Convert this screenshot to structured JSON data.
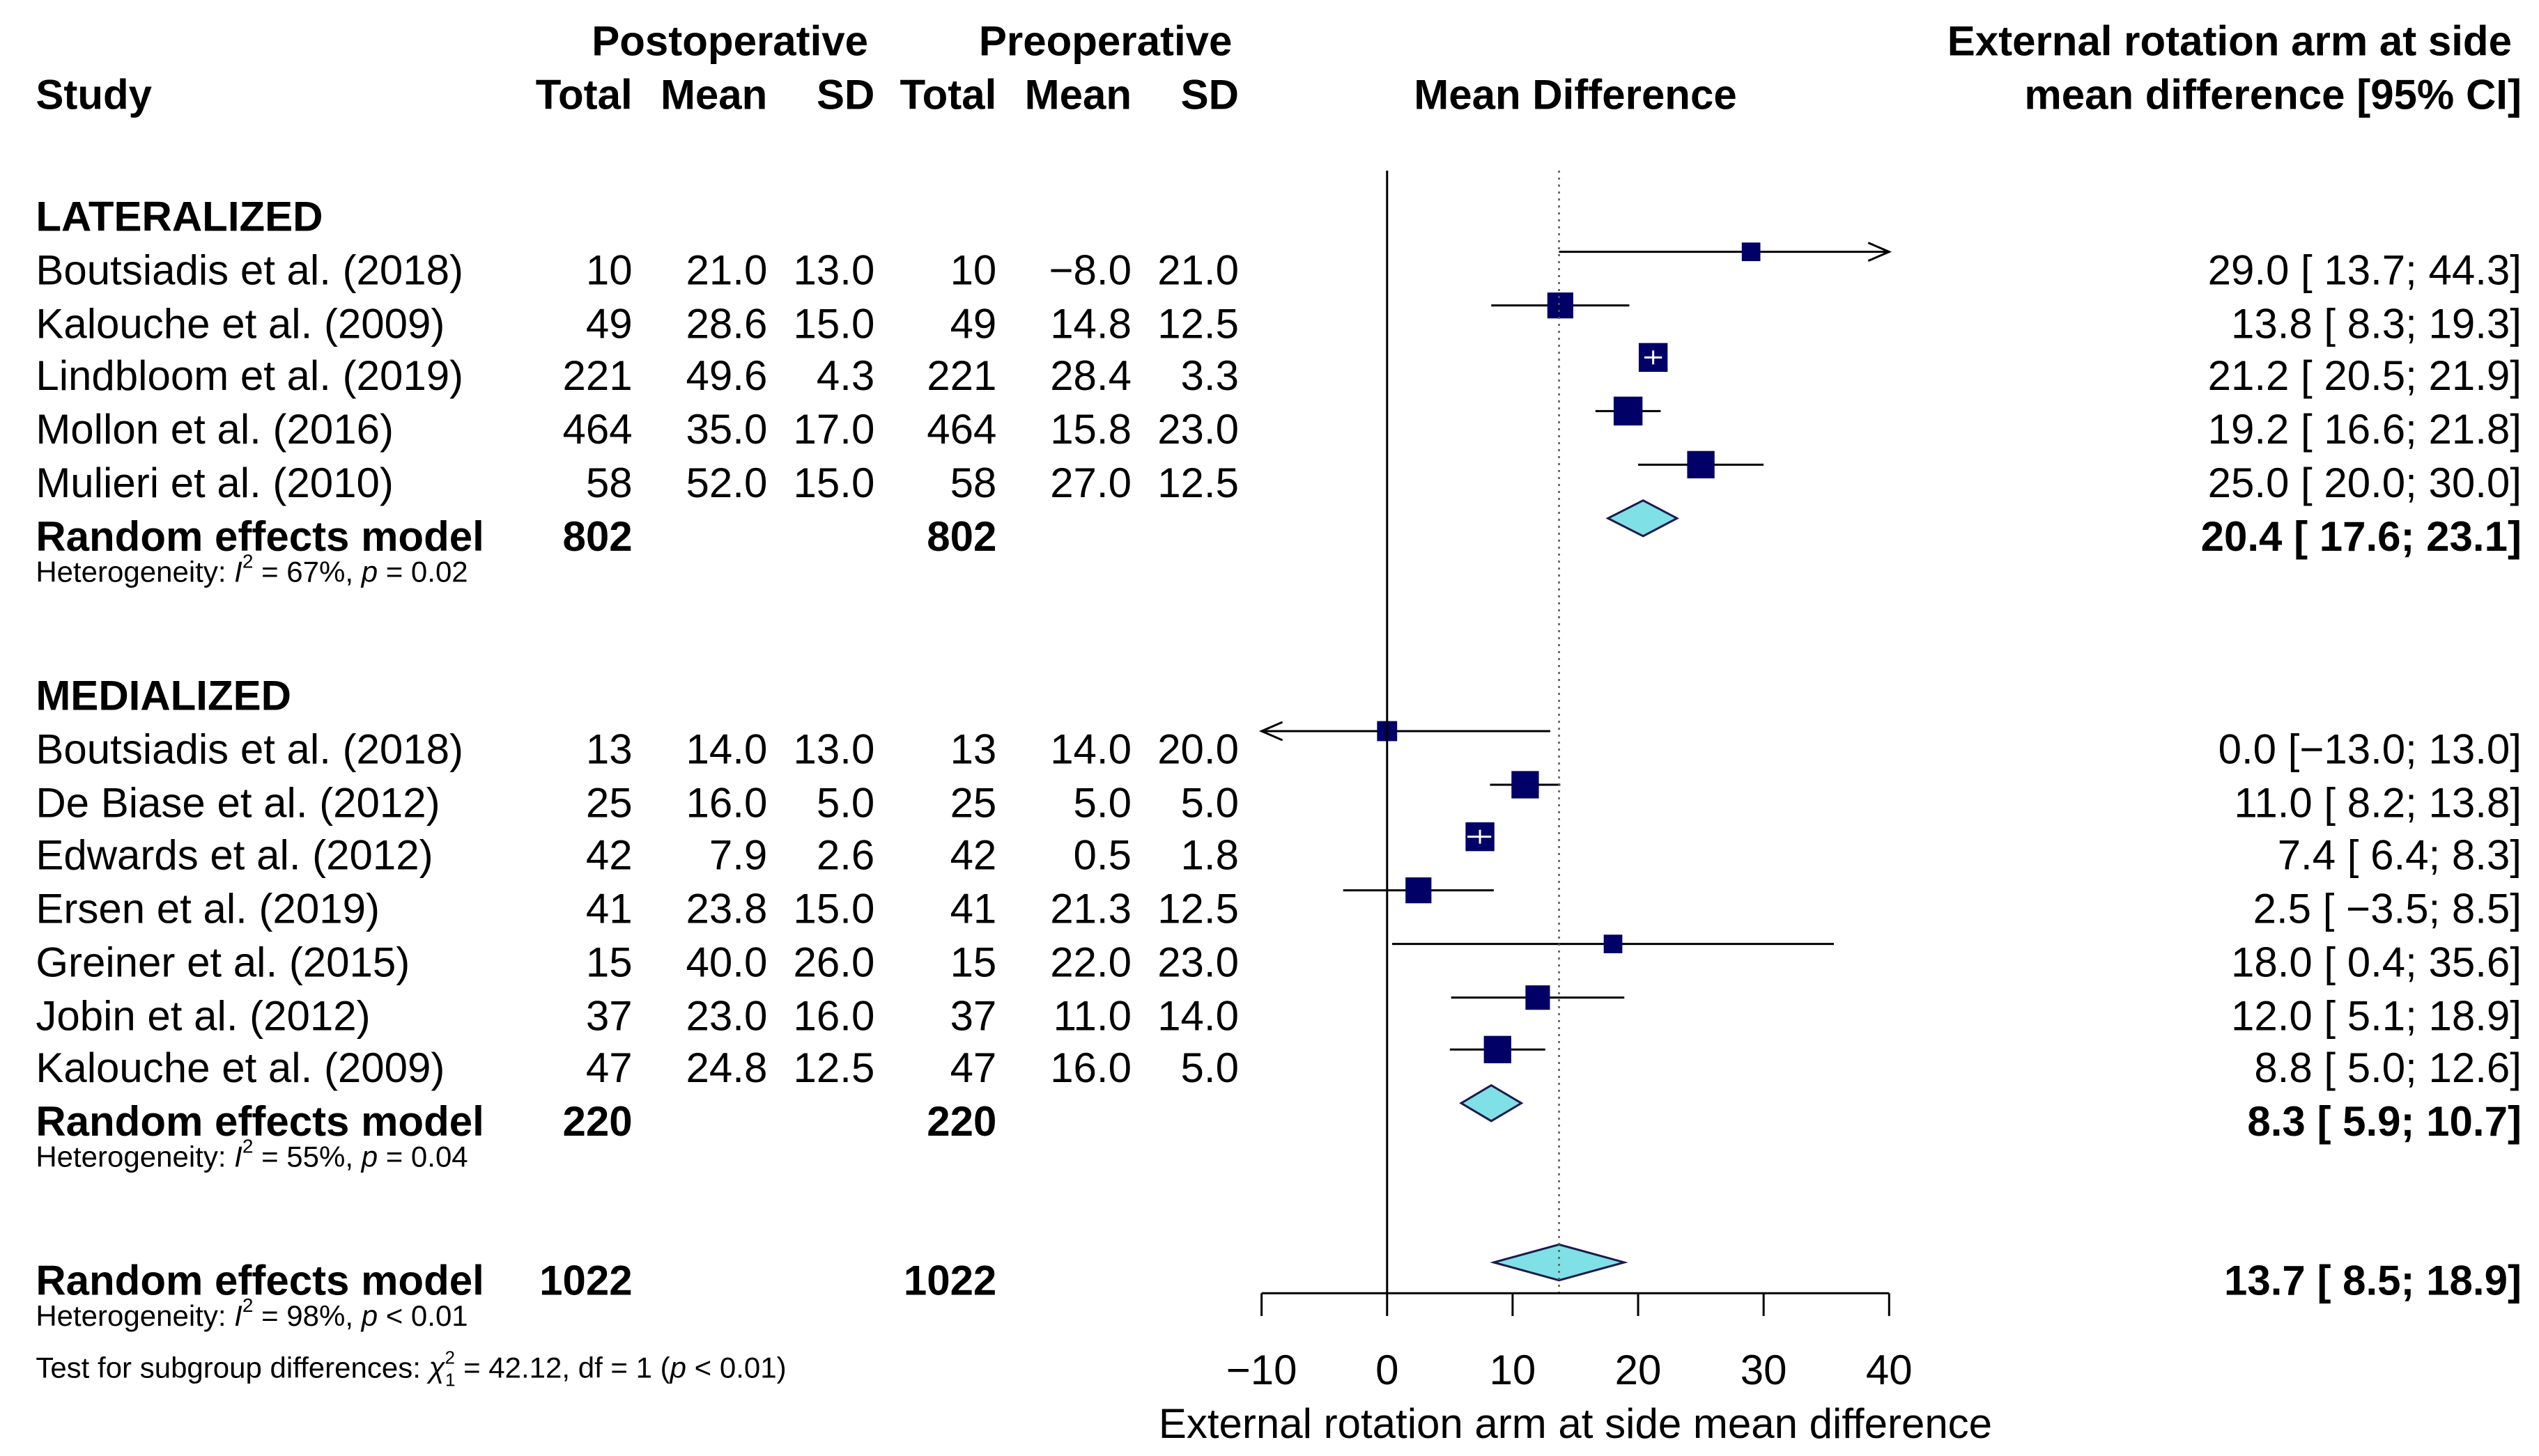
{
  "chart_data": {
    "type": "forest",
    "headers": {
      "study": "Study",
      "postoperative": "Postoperative",
      "preoperative": "Preoperative",
      "total": "Total",
      "mean": "Mean",
      "sd": "SD",
      "mean_difference": "Mean Difference",
      "effect_line1": "External rotation arm at side",
      "effect_line2": "mean difference [95% CI]"
    },
    "groups": [
      {
        "title": "LATERALIZED",
        "studies": [
          {
            "study": "Boutsiadis et al. (2018)",
            "post_total": "10",
            "post_mean": "21.0",
            "post_sd": "13.0",
            "pre_total": "10",
            "pre_mean": "−8.0",
            "pre_sd": "21.0",
            "md": 29.0,
            "lo": 13.7,
            "hi": 44.3,
            "ci_text": "29.0 [ 13.7; 44.3]",
            "weight": 0.35
          },
          {
            "study": "Kalouche et al. (2009)",
            "post_total": "49",
            "post_mean": "28.6",
            "post_sd": "15.0",
            "pre_total": "49",
            "pre_mean": "14.8",
            "pre_sd": "12.5",
            "md": 13.8,
            "lo": 8.3,
            "hi": 19.3,
            "ci_text": "13.8 [  8.3; 19.3]",
            "weight": 0.6
          },
          {
            "study": "Lindbloom et al. (2019)",
            "post_total": "221",
            "post_mean": "49.6",
            "post_sd": "4.3",
            "pre_total": "221",
            "pre_mean": "28.4",
            "pre_sd": "3.3",
            "md": 21.2,
            "lo": 20.5,
            "hi": 21.9,
            "ci_text": "21.2 [ 20.5; 21.9]",
            "weight": 0.7
          },
          {
            "study": "Mollon et al. (2016)",
            "post_total": "464",
            "post_mean": "35.0",
            "post_sd": "17.0",
            "pre_total": "464",
            "pre_mean": "15.8",
            "pre_sd": "23.0",
            "md": 19.2,
            "lo": 16.6,
            "hi": 21.8,
            "ci_text": "19.2 [ 16.6; 21.8]",
            "weight": 0.7
          },
          {
            "study": "Mulieri et al. (2010)",
            "post_total": "58",
            "post_mean": "52.0",
            "post_sd": "15.0",
            "pre_total": "58",
            "pre_mean": "27.0",
            "pre_sd": "12.5",
            "md": 25.0,
            "lo": 20.0,
            "hi": 30.0,
            "ci_text": "25.0 [ 20.0; 30.0]",
            "weight": 0.65
          }
        ],
        "model": {
          "label": "Random effects model",
          "post_total": "802",
          "pre_total": "802",
          "md": 20.4,
          "lo": 17.6,
          "hi": 23.1,
          "ci_text": "20.4 [ 17.6; 23.1]"
        },
        "heterogeneity": {
          "prefix": "Heterogeneity: ",
          "i2": "I",
          "sup": "2",
          "rest1": " = 67%, ",
          "p": "p",
          "rest2": " = 0.02"
        }
      },
      {
        "title": "MEDIALIZED",
        "studies": [
          {
            "study": "Boutsiadis et al. (2018)",
            "post_total": "13",
            "post_mean": "14.0",
            "post_sd": "13.0",
            "pre_total": "13",
            "pre_mean": "14.0",
            "pre_sd": "20.0",
            "md": 0.0,
            "lo": -13.0,
            "hi": 13.0,
            "ci_text": "0.0 [−13.0; 13.0]",
            "weight": 0.4
          },
          {
            "study": "De Biase et al. (2012)",
            "post_total": "25",
            "post_mean": "16.0",
            "post_sd": "5.0",
            "pre_total": "25",
            "pre_mean": "5.0",
            "pre_sd": "5.0",
            "md": 11.0,
            "lo": 8.2,
            "hi": 13.8,
            "ci_text": "11.0 [  8.2; 13.8]",
            "weight": 0.65
          },
          {
            "study": "Edwards et al. (2012)",
            "post_total": "42",
            "post_mean": "7.9",
            "post_sd": "2.6",
            "pre_total": "42",
            "pre_mean": "0.5",
            "pre_sd": "1.8",
            "md": 7.4,
            "lo": 6.4,
            "hi": 8.3,
            "ci_text": "7.4 [  6.4;  8.3]",
            "weight": 0.7
          },
          {
            "study": "Ersen et al. (2019)",
            "post_total": "41",
            "post_mean": "23.8",
            "post_sd": "15.0",
            "pre_total": "41",
            "pre_mean": "21.3",
            "pre_sd": "12.5",
            "md": 2.5,
            "lo": -3.5,
            "hi": 8.5,
            "ci_text": "2.5 [ −3.5;  8.5]",
            "weight": 0.6
          },
          {
            "study": "Greiner et al. (2015)",
            "post_total": "15",
            "post_mean": "40.0",
            "post_sd": "26.0",
            "pre_total": "15",
            "pre_mean": "22.0",
            "pre_sd": "23.0",
            "md": 18.0,
            "lo": 0.4,
            "hi": 35.6,
            "ci_text": "18.0 [  0.4; 35.6]",
            "weight": 0.35
          },
          {
            "study": "Jobin et al. (2012)",
            "post_total": "37",
            "post_mean": "23.0",
            "post_sd": "16.0",
            "pre_total": "37",
            "pre_mean": "11.0",
            "pre_sd": "14.0",
            "md": 12.0,
            "lo": 5.1,
            "hi": 18.9,
            "ci_text": "12.0 [  5.1; 18.9]",
            "weight": 0.55
          },
          {
            "study": "Kalouche et al. (2009)",
            "post_total": "47",
            "post_mean": "24.8",
            "post_sd": "12.5",
            "pre_total": "47",
            "pre_mean": "16.0",
            "pre_sd": "5.0",
            "md": 8.8,
            "lo": 5.0,
            "hi": 12.6,
            "ci_text": "8.8 [  5.0; 12.6]",
            "weight": 0.65
          }
        ],
        "model": {
          "label": "Random effects model",
          "post_total": "220",
          "pre_total": "220",
          "md": 8.3,
          "lo": 5.9,
          "hi": 10.7,
          "ci_text": "8.3 [  5.9; 10.7]"
        },
        "heterogeneity": {
          "prefix": "Heterogeneity: ",
          "i2": "I",
          "sup": "2",
          "rest1": " = 55%, ",
          "p": "p",
          "rest2": " = 0.04"
        }
      }
    ],
    "overall": {
      "label": "Random effects model",
      "post_total": "1022",
      "pre_total": "1022",
      "md": 13.7,
      "lo": 8.5,
      "hi": 18.9,
      "ci_text": "13.7 [  8.5; 18.9]",
      "heterogeneity": {
        "prefix": "Heterogeneity: ",
        "i2": "I",
        "sup": "2",
        "rest1": " = 98%, ",
        "p": "p",
        "rest2": " < 0.01"
      },
      "subgroup_test": {
        "prefix": "Test for subgroup differences: ",
        "chi": "χ",
        "sup": "2",
        "sub": "1",
        "rest1": " = 42.12, df = 1 (",
        "p": "p",
        "rest2": " < 0.01)"
      }
    },
    "axis": {
      "xlim": [
        -10,
        40
      ],
      "ticks": [
        -10,
        0,
        10,
        20,
        30,
        40
      ],
      "tick_labels": [
        "−10",
        "0",
        "10",
        "20",
        "30",
        "40"
      ],
      "xlabel": "External rotation arm at side mean difference",
      "null_line": 0,
      "reference_line": 13.7
    },
    "colors": {
      "square": "#000066",
      "diamond_fill": "#7fe0e6",
      "diamond_stroke": "#1a1a4e",
      "text": "#000000"
    }
  }
}
